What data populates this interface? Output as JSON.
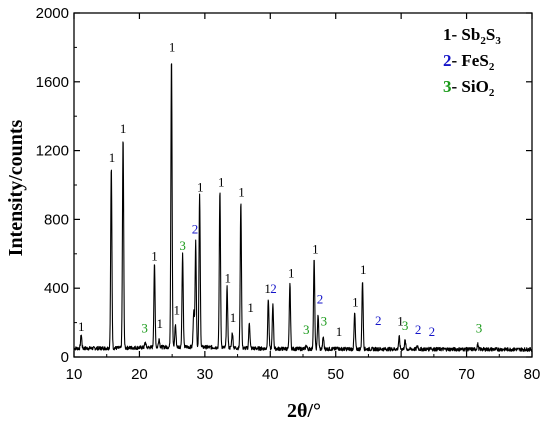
{
  "chart_data": {
    "type": "line",
    "title": "",
    "xlabel": "2θ/°",
    "ylabel": "Intensity/counts",
    "xlim": [
      10,
      80
    ],
    "ylim": [
      0,
      2000
    ],
    "x_ticks": [
      "10",
      "20",
      "30",
      "40",
      "50",
      "60",
      "70",
      "80"
    ],
    "y_ticks": [
      "0",
      "400",
      "800",
      "1200",
      "1600",
      "2000"
    ],
    "grid": false,
    "legend_position": "top-right",
    "legend": [
      {
        "marker": "1",
        "dash": "-",
        "formula": [
          {
            "t": "Sb"
          },
          {
            "t": "2",
            "sub": true
          },
          {
            "t": "S"
          },
          {
            "t": "3",
            "sub": true
          }
        ],
        "color": "#000000"
      },
      {
        "marker": "2",
        "dash": "-",
        "formula": [
          {
            "t": "FeS"
          },
          {
            "t": "2",
            "sub": true
          }
        ],
        "color": "#1414c8"
      },
      {
        "marker": "3",
        "dash": "-",
        "formula": [
          {
            "t": "SiO"
          },
          {
            "t": "2",
            "sub": true
          }
        ],
        "color": "#1a9a1a"
      }
    ],
    "colors": {
      "1": "#000000",
      "2": "#1414c8",
      "3": "#1a9a1a"
    },
    "baseline": 50,
    "peaks": [
      {
        "x": 11.1,
        "y": 130,
        "phase": "1"
      },
      {
        "x": 15.7,
        "y": 1100,
        "phase": "1"
      },
      {
        "x": 17.5,
        "y": 1270,
        "phase": "1"
      },
      {
        "x": 20.9,
        "y": 80,
        "phase": "3"
      },
      {
        "x": 22.3,
        "y": 530,
        "phase": "1"
      },
      {
        "x": 23.0,
        "y": 100,
        "phase": "1"
      },
      {
        "x": 24.9,
        "y": 1740,
        "phase": "1"
      },
      {
        "x": 25.5,
        "y": 180,
        "phase": "1"
      },
      {
        "x": 26.6,
        "y": 590,
        "phase": "3"
      },
      {
        "x": 28.3,
        "y": 260,
        "phase": "1"
      },
      {
        "x": 28.6,
        "y": 660,
        "phase": "2"
      },
      {
        "x": 29.2,
        "y": 930,
        "phase": "1"
      },
      {
        "x": 32.3,
        "y": 960,
        "phase": "1"
      },
      {
        "x": 33.4,
        "y": 400,
        "phase": "1"
      },
      {
        "x": 34.2,
        "y": 140,
        "phase": "1"
      },
      {
        "x": 35.5,
        "y": 900,
        "phase": "1"
      },
      {
        "x": 36.8,
        "y": 200,
        "phase": "1"
      },
      {
        "x": 39.7,
        "y": 340,
        "phase": "1"
      },
      {
        "x": 40.4,
        "y": 310,
        "phase": "2"
      },
      {
        "x": 43.0,
        "y": 430,
        "phase": "1"
      },
      {
        "x": 45.5,
        "y": 70,
        "phase": "3"
      },
      {
        "x": 46.7,
        "y": 570,
        "phase": "1"
      },
      {
        "x": 47.3,
        "y": 250,
        "phase": "2"
      },
      {
        "x": 48.1,
        "y": 120,
        "phase": "3"
      },
      {
        "x": 50.3,
        "y": 60,
        "phase": "1"
      },
      {
        "x": 52.9,
        "y": 260,
        "phase": "1"
      },
      {
        "x": 54.1,
        "y": 450,
        "phase": "1"
      },
      {
        "x": 56.2,
        "y": 50,
        "phase": "2"
      },
      {
        "x": 59.7,
        "y": 120,
        "phase": "1"
      },
      {
        "x": 60.6,
        "y": 100,
        "phase": "3"
      },
      {
        "x": 62.5,
        "y": 70,
        "phase": "2"
      },
      {
        "x": 64.5,
        "y": 60,
        "phase": "2"
      },
      {
        "x": 71.7,
        "y": 80,
        "phase": "3"
      }
    ],
    "peak_labels": [
      {
        "x": 11.1,
        "y": 135,
        "text": "1",
        "phase": "1"
      },
      {
        "x": 15.8,
        "y": 1115,
        "text": "1",
        "phase": "1"
      },
      {
        "x": 17.5,
        "y": 1285,
        "text": "1",
        "phase": "1"
      },
      {
        "x": 20.8,
        "y": 125,
        "text": "3",
        "phase": "3"
      },
      {
        "x": 22.3,
        "y": 545,
        "text": "1",
        "phase": "1"
      },
      {
        "x": 23.1,
        "y": 150,
        "text": "1",
        "phase": "1"
      },
      {
        "x": 25.0,
        "y": 1760,
        "text": "1",
        "phase": "1"
      },
      {
        "x": 25.7,
        "y": 230,
        "text": "1",
        "phase": "1"
      },
      {
        "x": 26.6,
        "y": 605,
        "text": "3",
        "phase": "3"
      },
      {
        "x": 28.5,
        "y": 700,
        "text": "2",
        "phase": "2"
      },
      {
        "x": 29.3,
        "y": 945,
        "text": "1",
        "phase": "1"
      },
      {
        "x": 32.5,
        "y": 975,
        "text": "1",
        "phase": "1"
      },
      {
        "x": 33.5,
        "y": 415,
        "text": "1",
        "phase": "1"
      },
      {
        "x": 34.3,
        "y": 185,
        "text": "1",
        "phase": "1"
      },
      {
        "x": 35.6,
        "y": 915,
        "text": "1",
        "phase": "1"
      },
      {
        "x": 37.0,
        "y": 245,
        "text": "1",
        "phase": "1"
      },
      {
        "x": 39.6,
        "y": 355,
        "text": "1",
        "phase": "1"
      },
      {
        "x": 40.5,
        "y": 355,
        "text": "2",
        "phase": "2"
      },
      {
        "x": 43.2,
        "y": 445,
        "text": "1",
        "phase": "1"
      },
      {
        "x": 45.5,
        "y": 115,
        "text": "3",
        "phase": "3"
      },
      {
        "x": 46.9,
        "y": 585,
        "text": "1",
        "phase": "1"
      },
      {
        "x": 47.6,
        "y": 295,
        "text": "2",
        "phase": "2"
      },
      {
        "x": 48.2,
        "y": 165,
        "text": "3",
        "phase": "3"
      },
      {
        "x": 50.5,
        "y": 105,
        "text": "1",
        "phase": "1"
      },
      {
        "x": 53.0,
        "y": 275,
        "text": "1",
        "phase": "1"
      },
      {
        "x": 54.2,
        "y": 465,
        "text": "1",
        "phase": "1"
      },
      {
        "x": 56.5,
        "y": 170,
        "text": "2",
        "phase": "2"
      },
      {
        "x": 59.9,
        "y": 165,
        "text": "1",
        "phase": "1"
      },
      {
        "x": 60.6,
        "y": 140,
        "text": "3",
        "phase": "3"
      },
      {
        "x": 62.6,
        "y": 115,
        "text": "2",
        "phase": "2"
      },
      {
        "x": 64.7,
        "y": 105,
        "text": "2",
        "phase": "2"
      },
      {
        "x": 71.9,
        "y": 125,
        "text": "3",
        "phase": "3"
      }
    ]
  }
}
